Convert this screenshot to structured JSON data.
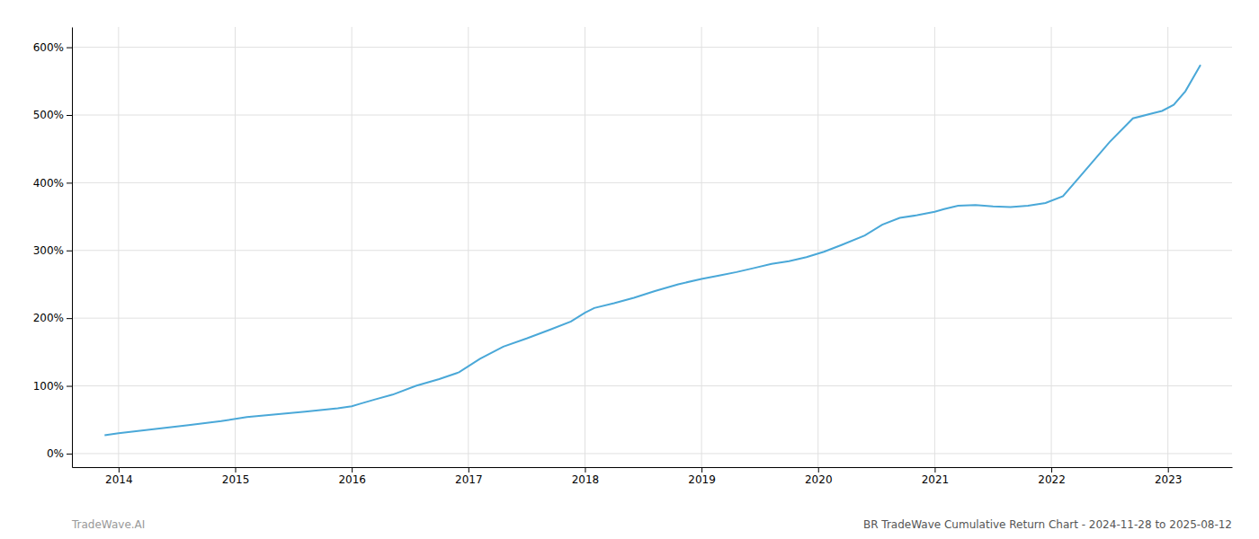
{
  "chart_data": {
    "type": "line",
    "title": "BR TradeWave Cumulative Return Chart - 2024-11-28 to 2025-08-12",
    "annotations": [
      "TradeWave.AI"
    ],
    "x": [
      2013.88,
      2014.0,
      2014.15,
      2014.35,
      2014.6,
      2014.88,
      2015.1,
      2015.35,
      2015.6,
      2015.88,
      2016.0,
      2016.08,
      2016.2,
      2016.35,
      2016.55,
      2016.75,
      2016.92,
      2017.1,
      2017.3,
      2017.5,
      2017.7,
      2017.88,
      2018.0,
      2018.08,
      2018.25,
      2018.42,
      2018.6,
      2018.8,
      2019.0,
      2019.15,
      2019.3,
      2019.45,
      2019.6,
      2019.75,
      2019.9,
      2020.05,
      2020.2,
      2020.4,
      2020.55,
      2020.7,
      2020.85,
      2021.0,
      2021.08,
      2021.2,
      2021.35,
      2021.5,
      2021.65,
      2021.8,
      2021.95,
      2022.1,
      2022.25,
      2022.5,
      2022.7,
      2022.88,
      2022.95,
      2023.05,
      2023.15,
      2023.28
    ],
    "values": [
      27,
      30,
      33,
      37,
      42,
      48,
      54,
      58,
      62,
      67,
      70,
      74,
      80,
      87,
      100,
      110,
      120,
      140,
      158,
      170,
      183,
      195,
      208,
      215,
      222,
      230,
      240,
      250,
      258,
      263,
      268,
      274,
      280,
      284,
      290,
      298,
      308,
      322,
      338,
      348,
      352,
      357,
      361,
      366,
      367,
      365,
      364,
      366,
      370,
      380,
      410,
      460,
      495,
      503,
      506,
      515,
      535,
      574
    ],
    "color": "#4aa8d8",
    "xlim": [
      2013.6,
      2023.55
    ],
    "xticks": [
      2014,
      2015,
      2016,
      2017,
      2018,
      2019,
      2020,
      2021,
      2022,
      2023
    ],
    "ylim": [
      -20,
      630
    ],
    "yticks": [
      {
        "value": 0,
        "label": "0%"
      },
      {
        "value": 100,
        "label": "100%"
      },
      {
        "value": 200,
        "label": "200%"
      },
      {
        "value": 300,
        "label": "300%"
      },
      {
        "value": 400,
        "label": "400%"
      },
      {
        "value": 500,
        "label": "500%"
      },
      {
        "value": 600,
        "label": "600%"
      }
    ],
    "grid": true
  }
}
